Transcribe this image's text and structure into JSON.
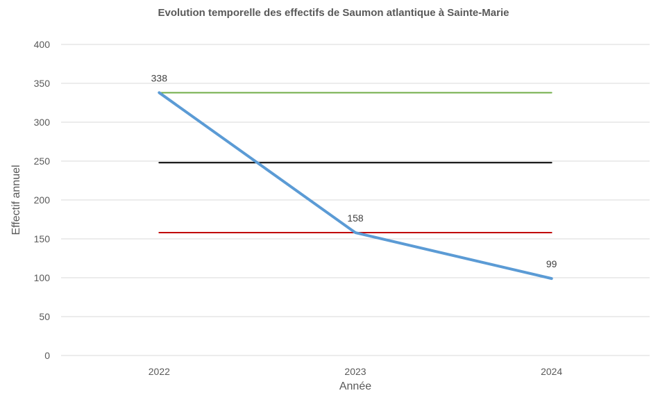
{
  "chart_data": {
    "type": "line",
    "title": "Evolution temporelle des effectifs de Saumon atlantique à Sainte-Marie",
    "xlabel": "Année",
    "ylabel": "Effectif annuel",
    "categories": [
      "2022",
      "2023",
      "2024"
    ],
    "ylim": [
      0,
      400
    ],
    "yticks": [
      0,
      50,
      100,
      150,
      200,
      250,
      300,
      350,
      400
    ],
    "grid": true,
    "series": [
      {
        "values": [
          338,
          158,
          99
        ],
        "color": "#5b9bd5",
        "data_labels": [
          "338",
          "158",
          "99"
        ]
      },
      {
        "values": [
          338,
          338,
          338
        ],
        "color": "#70ad47"
      },
      {
        "values": [
          248,
          248,
          248
        ],
        "color": "#000000"
      },
      {
        "values": [
          158,
          158,
          158
        ],
        "color": "#c00000"
      }
    ]
  }
}
